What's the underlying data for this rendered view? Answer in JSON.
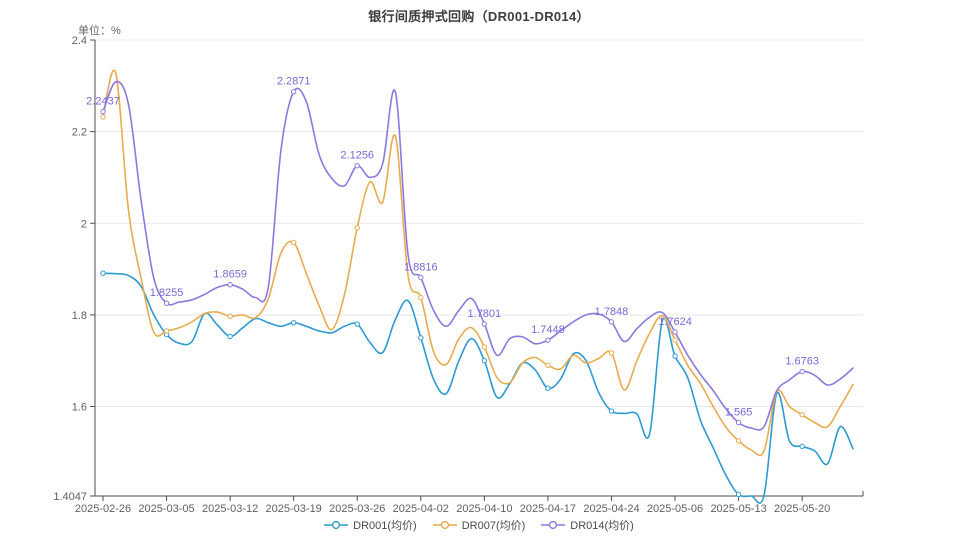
{
  "chart": {
    "title": "银行间质押式回购（DR001-DR014）",
    "unit_label": "单位：%"
  },
  "chart_data": {
    "type": "line",
    "title": "银行间质押式回购（DR001-DR014）",
    "ylabel": "单位：%",
    "xlabel": "",
    "grid": "horizontal",
    "legend_position": "bottom",
    "x": [
      "2025-02-26",
      "2025-02-27",
      "2025-02-28",
      "2025-03-03",
      "2025-03-04",
      "2025-03-05",
      "2025-03-06",
      "2025-03-07",
      "2025-03-10",
      "2025-03-11",
      "2025-03-12",
      "2025-03-13",
      "2025-03-14",
      "2025-03-17",
      "2025-03-18",
      "2025-03-19",
      "2025-03-20",
      "2025-03-21",
      "2025-03-24",
      "2025-03-25",
      "2025-03-26",
      "2025-03-27",
      "2025-03-28",
      "2025-03-31",
      "2025-04-01",
      "2025-04-02",
      "2025-04-03",
      "2025-04-07",
      "2025-04-08",
      "2025-04-09",
      "2025-04-10",
      "2025-04-11",
      "2025-04-14",
      "2025-04-15",
      "2025-04-16",
      "2025-04-17",
      "2025-04-18",
      "2025-04-21",
      "2025-04-22",
      "2025-04-23",
      "2025-04-24",
      "2025-04-25",
      "2025-04-28",
      "2025-04-29",
      "2025-04-30",
      "2025-05-06",
      "2025-05-07",
      "2025-05-08",
      "2025-05-09",
      "2025-05-12",
      "2025-05-13",
      "2025-05-14",
      "2025-05-15",
      "2025-05-16",
      "2025-05-19",
      "2025-05-20",
      "2025-05-21",
      "2025-05-22",
      "2025-05-23",
      "2025-05-26"
    ],
    "x_tick_every": 5,
    "x_tick_labels": [
      "2025-02-26",
      "2025-03-05",
      "2025-03-12",
      "2025-03-19",
      "2025-03-26",
      "2025-04-02",
      "2025-04-10",
      "2025-04-17",
      "2025-04-24",
      "2025-05-06",
      "2025-05-13",
      "2025-05-20"
    ],
    "y_axis": {
      "min": 1.4047,
      "max": 2.4,
      "ticks": [
        {
          "label": "2.4",
          "value": 2.4,
          "gridline": true
        },
        {
          "label": "2.2",
          "value": 2.2,
          "gridline": true
        },
        {
          "label": "2",
          "value": 2.0,
          "gridline": true
        },
        {
          "label": "1.8",
          "value": 1.8,
          "gridline": true
        },
        {
          "label": "1.6",
          "value": 1.6,
          "gridline": true
        },
        {
          "label": "1.4047",
          "value": 1.4047,
          "gridline": false
        }
      ]
    },
    "series": [
      {
        "name": "DR001(均价)",
        "color": "#2d9bd3",
        "values": [
          1.891,
          1.89,
          1.886,
          1.862,
          1.8,
          1.757,
          1.738,
          1.742,
          1.803,
          1.778,
          1.753,
          1.772,
          1.792,
          1.783,
          1.775,
          1.783,
          1.775,
          1.765,
          1.761,
          1.775,
          1.78,
          1.74,
          1.718,
          1.79,
          1.831,
          1.75,
          1.66,
          1.628,
          1.7,
          1.748,
          1.7,
          1.62,
          1.65,
          1.695,
          1.68,
          1.64,
          1.66,
          1.715,
          1.7,
          1.63,
          1.59,
          1.585,
          1.584,
          1.54,
          1.787,
          1.71,
          1.663,
          1.57,
          1.51,
          1.45,
          1.408,
          1.4047,
          1.406,
          1.628,
          1.525,
          1.513,
          1.503,
          1.475,
          1.556,
          1.508
        ]
      },
      {
        "name": "DR007(均价)",
        "color": "#e7ac4e",
        "values": [
          2.232,
          2.328,
          2.03,
          1.88,
          1.762,
          1.765,
          1.772,
          1.785,
          1.803,
          1.806,
          1.797,
          1.8,
          1.794,
          1.835,
          1.935,
          1.958,
          1.89,
          1.82,
          1.768,
          1.845,
          1.99,
          2.09,
          2.046,
          2.19,
          1.885,
          1.838,
          1.72,
          1.692,
          1.748,
          1.772,
          1.73,
          1.663,
          1.652,
          1.695,
          1.707,
          1.69,
          1.682,
          1.712,
          1.695,
          1.705,
          1.717,
          1.636,
          1.7,
          1.76,
          1.798,
          1.745,
          1.69,
          1.65,
          1.6,
          1.555,
          1.525,
          1.505,
          1.503,
          1.632,
          1.6,
          1.582,
          1.565,
          1.556,
          1.6,
          1.648
        ]
      },
      {
        "name": "DR014(均价)",
        "color": "#8a79df",
        "values": [
          2.2437,
          2.3088,
          2.26,
          2.05,
          1.88,
          1.8255,
          1.828,
          1.833,
          1.845,
          1.86,
          1.8659,
          1.856,
          1.838,
          1.86,
          2.16,
          2.2871,
          2.265,
          2.15,
          2.098,
          2.082,
          2.1256,
          2.1,
          2.13,
          2.2865,
          1.93,
          1.8816,
          1.81,
          1.775,
          1.81,
          1.8355,
          1.7801,
          1.712,
          1.748,
          1.752,
          1.737,
          1.7448,
          1.765,
          1.785,
          1.8,
          1.802,
          1.7848,
          1.742,
          1.77,
          1.795,
          1.805,
          1.7624,
          1.712,
          1.67,
          1.635,
          1.595,
          1.565,
          1.553,
          1.556,
          1.634,
          1.658,
          1.6763,
          1.668,
          1.647,
          1.66,
          1.684
        ]
      }
    ],
    "annotations": [
      {
        "label": "2.2437",
        "index": 0,
        "series": 2
      },
      {
        "label": "1.8255",
        "index": 5,
        "series": 2
      },
      {
        "label": "1.8659",
        "index": 10,
        "series": 2
      },
      {
        "label": "2.2871",
        "index": 15,
        "series": 2
      },
      {
        "label": "2.1256",
        "index": 20,
        "series": 2
      },
      {
        "label": "1.8816",
        "index": 25,
        "series": 2
      },
      {
        "label": "1.7801",
        "index": 30,
        "series": 2
      },
      {
        "label": "1.7448",
        "index": 35,
        "series": 2
      },
      {
        "label": "1.7848",
        "index": 40,
        "series": 2
      },
      {
        "label": "1.7624",
        "index": 45,
        "series": 2
      },
      {
        "label": "1.565",
        "index": 50,
        "series": 2
      },
      {
        "label": "1.6763",
        "index": 55,
        "series": 2
      }
    ],
    "annotation_color": "#7b68d9"
  },
  "style_colors": {
    "grid": "#e8e8e8",
    "axis": "#4d4d4d",
    "tick_text": "#606060",
    "title_text": "#3d3d3d",
    "legend_text": "#4a4a4a"
  }
}
